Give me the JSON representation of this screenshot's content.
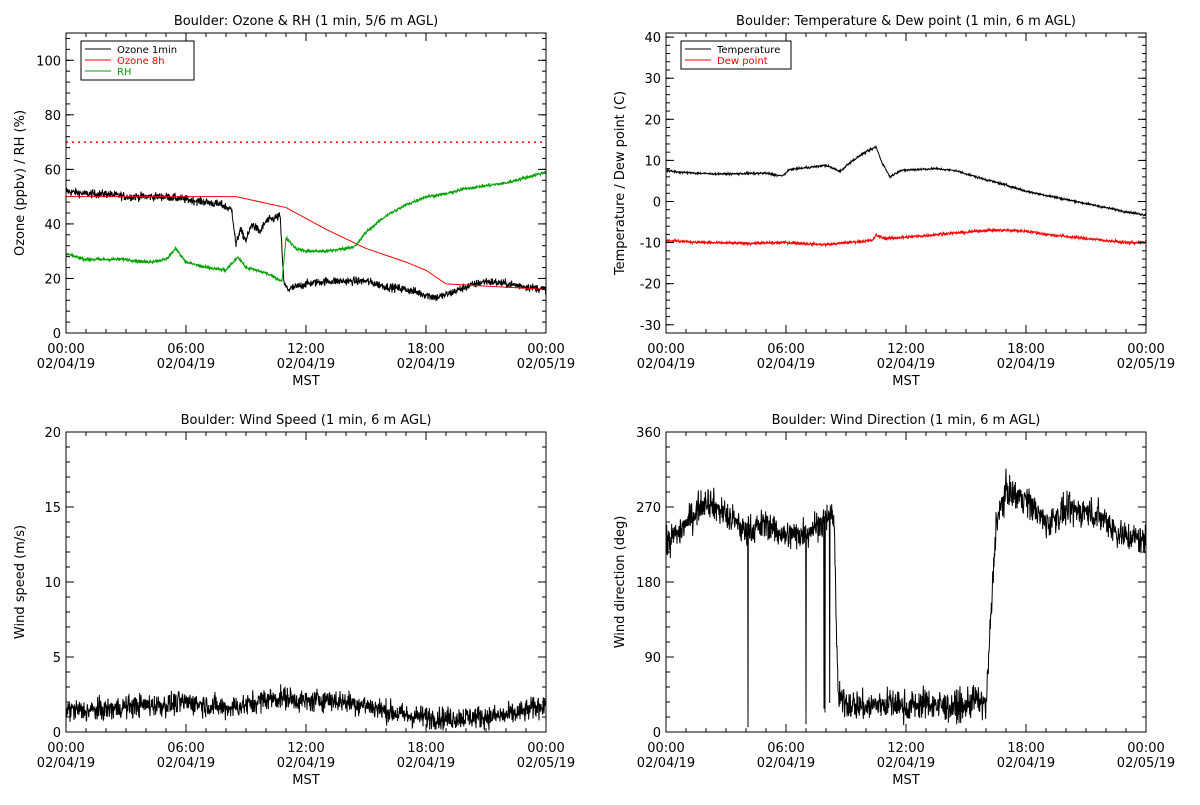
{
  "chart_data": [
    {
      "type": "line",
      "title": "Boulder: Ozone & RH (1 min, 5/6 m AGL)",
      "xlabel": "MST",
      "ylabel": "Ozone (ppbv) / RH (%)",
      "ylim": [
        0,
        110
      ],
      "yticks": [
        0,
        20,
        40,
        60,
        80,
        100
      ],
      "x_range_hours": [
        0,
        24
      ],
      "xtick_labels": [
        [
          "00:00",
          "02/04/19"
        ],
        [
          "06:00",
          "02/04/19"
        ],
        [
          "12:00",
          "02/04/19"
        ],
        [
          "18:00",
          "02/04/19"
        ],
        [
          "00:00",
          "02/05/19"
        ]
      ],
      "legend": {
        "position": "top-left",
        "entries": [
          {
            "name": "Ozone 1min",
            "color": "#000000"
          },
          {
            "name": "Ozone 8h",
            "color": "#ff0000"
          },
          {
            "name": "RH",
            "color": "#00a000"
          }
        ]
      },
      "reference_line": {
        "y": 70,
        "color": "#ff0000",
        "style": "dotted"
      },
      "series": [
        {
          "name": "Ozone 1min",
          "color": "#000000",
          "noise": 1.5,
          "x": [
            0,
            1,
            2,
            3,
            4,
            5,
            6,
            7,
            7.8,
            8.3,
            8.5,
            8.7,
            9.0,
            9.3,
            9.7,
            10.0,
            10.4,
            10.7,
            10.9,
            11.1,
            12,
            13,
            14,
            15,
            16,
            17,
            18,
            18.5,
            19,
            20,
            21,
            22,
            23,
            24
          ],
          "y": [
            52,
            51,
            51,
            50,
            50,
            50,
            49,
            48,
            47,
            45,
            32,
            38,
            34,
            40,
            37,
            41,
            42,
            43,
            18,
            16,
            18,
            19,
            19,
            19,
            17,
            16,
            14,
            13,
            14,
            17,
            19,
            18,
            17,
            16
          ]
        },
        {
          "name": "Ozone 8h",
          "color": "#ff0000",
          "noise": 0,
          "x": [
            0,
            8.5,
            11,
            13,
            15,
            17,
            18,
            19,
            24
          ],
          "y": [
            50,
            50,
            46,
            38,
            31,
            26,
            23,
            18,
            16
          ]
        },
        {
          "name": "RH",
          "color": "#00a000",
          "noise": 0.6,
          "x": [
            0,
            1,
            2,
            3,
            4,
            5,
            5.5,
            6,
            7,
            8,
            8.6,
            9,
            10,
            10.8,
            11,
            11.5,
            12,
            13,
            14,
            14.5,
            15,
            16,
            17,
            18,
            19,
            20,
            21,
            22,
            23,
            24
          ],
          "y": [
            29,
            27,
            27,
            27,
            26,
            27,
            31,
            26,
            24,
            23,
            28,
            24,
            22,
            19,
            35,
            31,
            30,
            30,
            31,
            32,
            37,
            43,
            47,
            50,
            51,
            53,
            54,
            55,
            57,
            59
          ]
        }
      ]
    },
    {
      "type": "line",
      "title": "Boulder: Temperature & Dew point (1 min, 6 m AGL)",
      "xlabel": "MST",
      "ylabel": "Temperature / Dew point (C)",
      "ylim": [
        -32,
        41
      ],
      "yticks": [
        -30,
        -20,
        -10,
        0,
        10,
        20,
        30,
        40
      ],
      "x_range_hours": [
        0,
        24
      ],
      "xtick_labels": [
        [
          "00:00",
          "02/04/19"
        ],
        [
          "06:00",
          "02/04/19"
        ],
        [
          "12:00",
          "02/04/19"
        ],
        [
          "18:00",
          "02/04/19"
        ],
        [
          "00:00",
          "02/05/19"
        ]
      ],
      "legend": {
        "position": "top-left",
        "entries": [
          {
            "name": "Temperature",
            "color": "#000000"
          },
          {
            "name": "Dew point",
            "color": "#ff0000"
          }
        ]
      },
      "series": [
        {
          "name": "Temperature",
          "color": "#000000",
          "noise": 0.25,
          "x": [
            0,
            1,
            2,
            3,
            4,
            5,
            5.8,
            6.2,
            7,
            8,
            8.7,
            9.2,
            9.8,
            10.5,
            10.8,
            11.2,
            11.7,
            12.5,
            13.5,
            14.5,
            15.5,
            17,
            18,
            19,
            20,
            21,
            22,
            23,
            24
          ],
          "y": [
            7.5,
            7,
            6.8,
            6.7,
            6.8,
            6.9,
            6.2,
            7.8,
            8.2,
            8.8,
            7.3,
            9.5,
            11.5,
            13.3,
            9.5,
            6,
            7.5,
            7.8,
            8,
            7.5,
            6,
            4,
            2.5,
            1.5,
            0.5,
            -0.5,
            -1.5,
            -2.5,
            -3.3
          ]
        },
        {
          "name": "Dew point",
          "color": "#ff0000",
          "noise": 0.35,
          "x": [
            0,
            2,
            4,
            6,
            8,
            9,
            9.5,
            10.3,
            10.5,
            11,
            12,
            13,
            14,
            15,
            16,
            17,
            18,
            19,
            20,
            21,
            22,
            23,
            24
          ],
          "y": [
            -9.5,
            -10,
            -10.2,
            -10,
            -10.5,
            -10,
            -9.8,
            -9.5,
            -8.3,
            -9,
            -8.7,
            -8.3,
            -7.8,
            -7.5,
            -7,
            -7,
            -7.2,
            -8,
            -8.5,
            -9,
            -9.5,
            -10,
            -10
          ]
        }
      ]
    },
    {
      "type": "line",
      "title": "Boulder: Wind Speed (1 min, 6 m AGL)",
      "xlabel": "MST",
      "ylabel": "Wind speed (m/s)",
      "ylim": [
        0,
        20
      ],
      "yticks": [
        0,
        5,
        10,
        15,
        20
      ],
      "x_range_hours": [
        0,
        24
      ],
      "xtick_labels": [
        [
          "00:00",
          "02/04/19"
        ],
        [
          "06:00",
          "02/04/19"
        ],
        [
          "12:00",
          "02/04/19"
        ],
        [
          "18:00",
          "02/04/19"
        ],
        [
          "00:00",
          "02/05/19"
        ]
      ],
      "series": [
        {
          "name": "Wind speed",
          "color": "#000000",
          "noise": 0.75,
          "x": [
            0,
            1,
            2,
            3,
            4,
            5,
            6,
            7,
            8,
            9,
            10,
            11,
            12,
            13,
            14,
            15,
            16,
            17,
            18,
            19,
            20,
            21,
            22,
            23,
            24
          ],
          "y": [
            1.5,
            1.4,
            1.5,
            1.7,
            1.8,
            1.8,
            2.0,
            1.8,
            1.6,
            1.8,
            2.2,
            2.3,
            2.0,
            2.2,
            2.0,
            1.8,
            1.4,
            1.1,
            1.0,
            0.9,
            1.0,
            1.0,
            1.1,
            1.4,
            1.9
          ]
        }
      ]
    },
    {
      "type": "line",
      "title": "Boulder: Wind Direction (1 min, 6 m AGL)",
      "xlabel": "MST",
      "ylabel": "Wind direction (deg)",
      "ylim": [
        0,
        360
      ],
      "yticks": [
        0,
        90,
        180,
        270,
        360
      ],
      "x_range_hours": [
        0,
        24
      ],
      "xtick_labels": [
        [
          "00:00",
          "02/04/19"
        ],
        [
          "06:00",
          "02/04/19"
        ],
        [
          "12:00",
          "02/04/19"
        ],
        [
          "18:00",
          "02/04/19"
        ],
        [
          "00:00",
          "02/05/19"
        ]
      ],
      "series": [
        {
          "name": "Wind direction",
          "color": "#000000",
          "noise": 18,
          "x": [
            0,
            1,
            2,
            3,
            4,
            5,
            6,
            7,
            8,
            8.4,
            8.6,
            9,
            10,
            11,
            12,
            13,
            14,
            15,
            15.5,
            16,
            16.5,
            17,
            18,
            19,
            20,
            21,
            22,
            22.5,
            23,
            24
          ],
          "y": [
            225,
            250,
            280,
            260,
            240,
            250,
            235,
            240,
            255,
            260,
            40,
            35,
            30,
            35,
            30,
            35,
            30,
            30,
            40,
            30,
            250,
            290,
            280,
            250,
            265,
            265,
            255,
            240,
            235,
            230
          ]
        }
      ]
    }
  ]
}
